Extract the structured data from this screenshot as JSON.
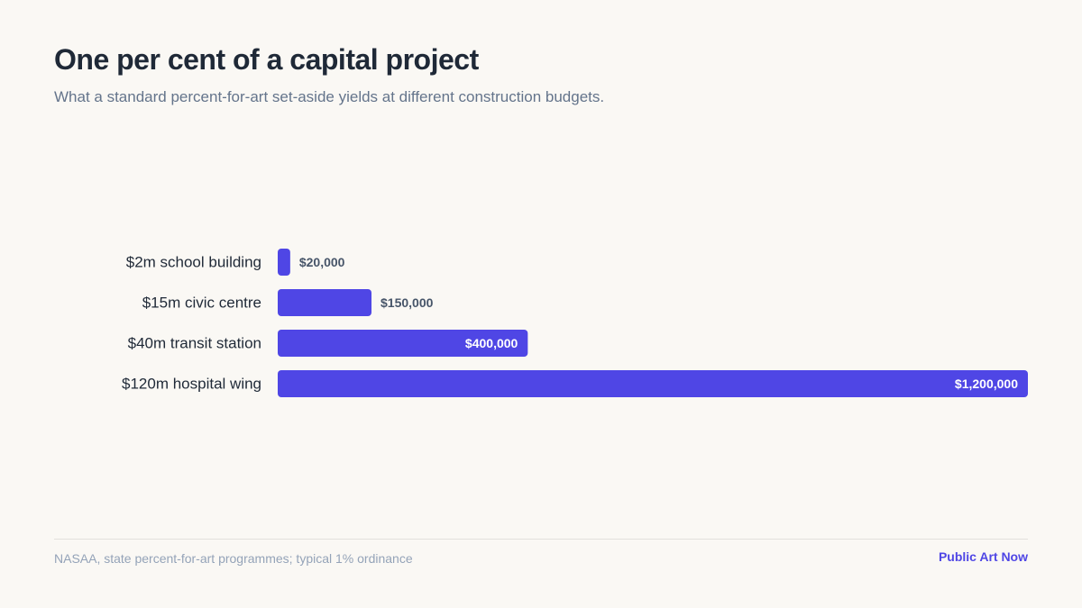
{
  "header": {
    "title": "One per cent of a capital project",
    "subtitle": "What a standard percent-for-art set-aside yields at different construction budgets."
  },
  "footer": {
    "source": "NASAA, state percent-for-art programmes; typical 1% ordinance",
    "brand": "Public Art Now"
  },
  "colors": {
    "bar": "#4f46e5",
    "label_outside": "#475569",
    "label_inside": "#ffffff",
    "category_label": "#1f2937"
  },
  "chart_data": {
    "type": "bar",
    "orientation": "horizontal",
    "title": "One per cent of a capital project",
    "subtitle": "What a standard percent-for-art set-aside yields at different construction budgets.",
    "categories": [
      "$2m school building",
      "$15m civic centre",
      "$40m transit station",
      "$120m hospital wing"
    ],
    "values": [
      20000,
      150000,
      400000,
      1200000
    ],
    "value_labels": [
      "$20,000",
      "$150,000",
      "$400,000",
      "$1,200,000"
    ],
    "xlim": [
      0,
      1200000
    ],
    "grid": false,
    "legend": "none"
  }
}
